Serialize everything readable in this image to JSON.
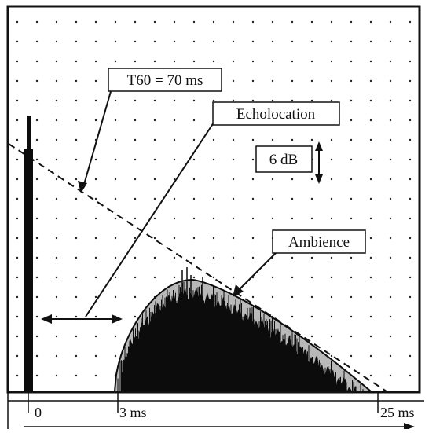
{
  "labels": {
    "t60": "T60 = 70 ms",
    "echolocation": "Echolocation",
    "scale": "6 dB",
    "ambience": "Ambience"
  },
  "axis": {
    "ticks": [
      "0",
      "3 ms",
      "25 ms"
    ]
  },
  "colors": {
    "ink": "#111111",
    "grid_dot": "#222222",
    "fill_gray": "#b9b9b9",
    "background": "#ffffff"
  }
}
